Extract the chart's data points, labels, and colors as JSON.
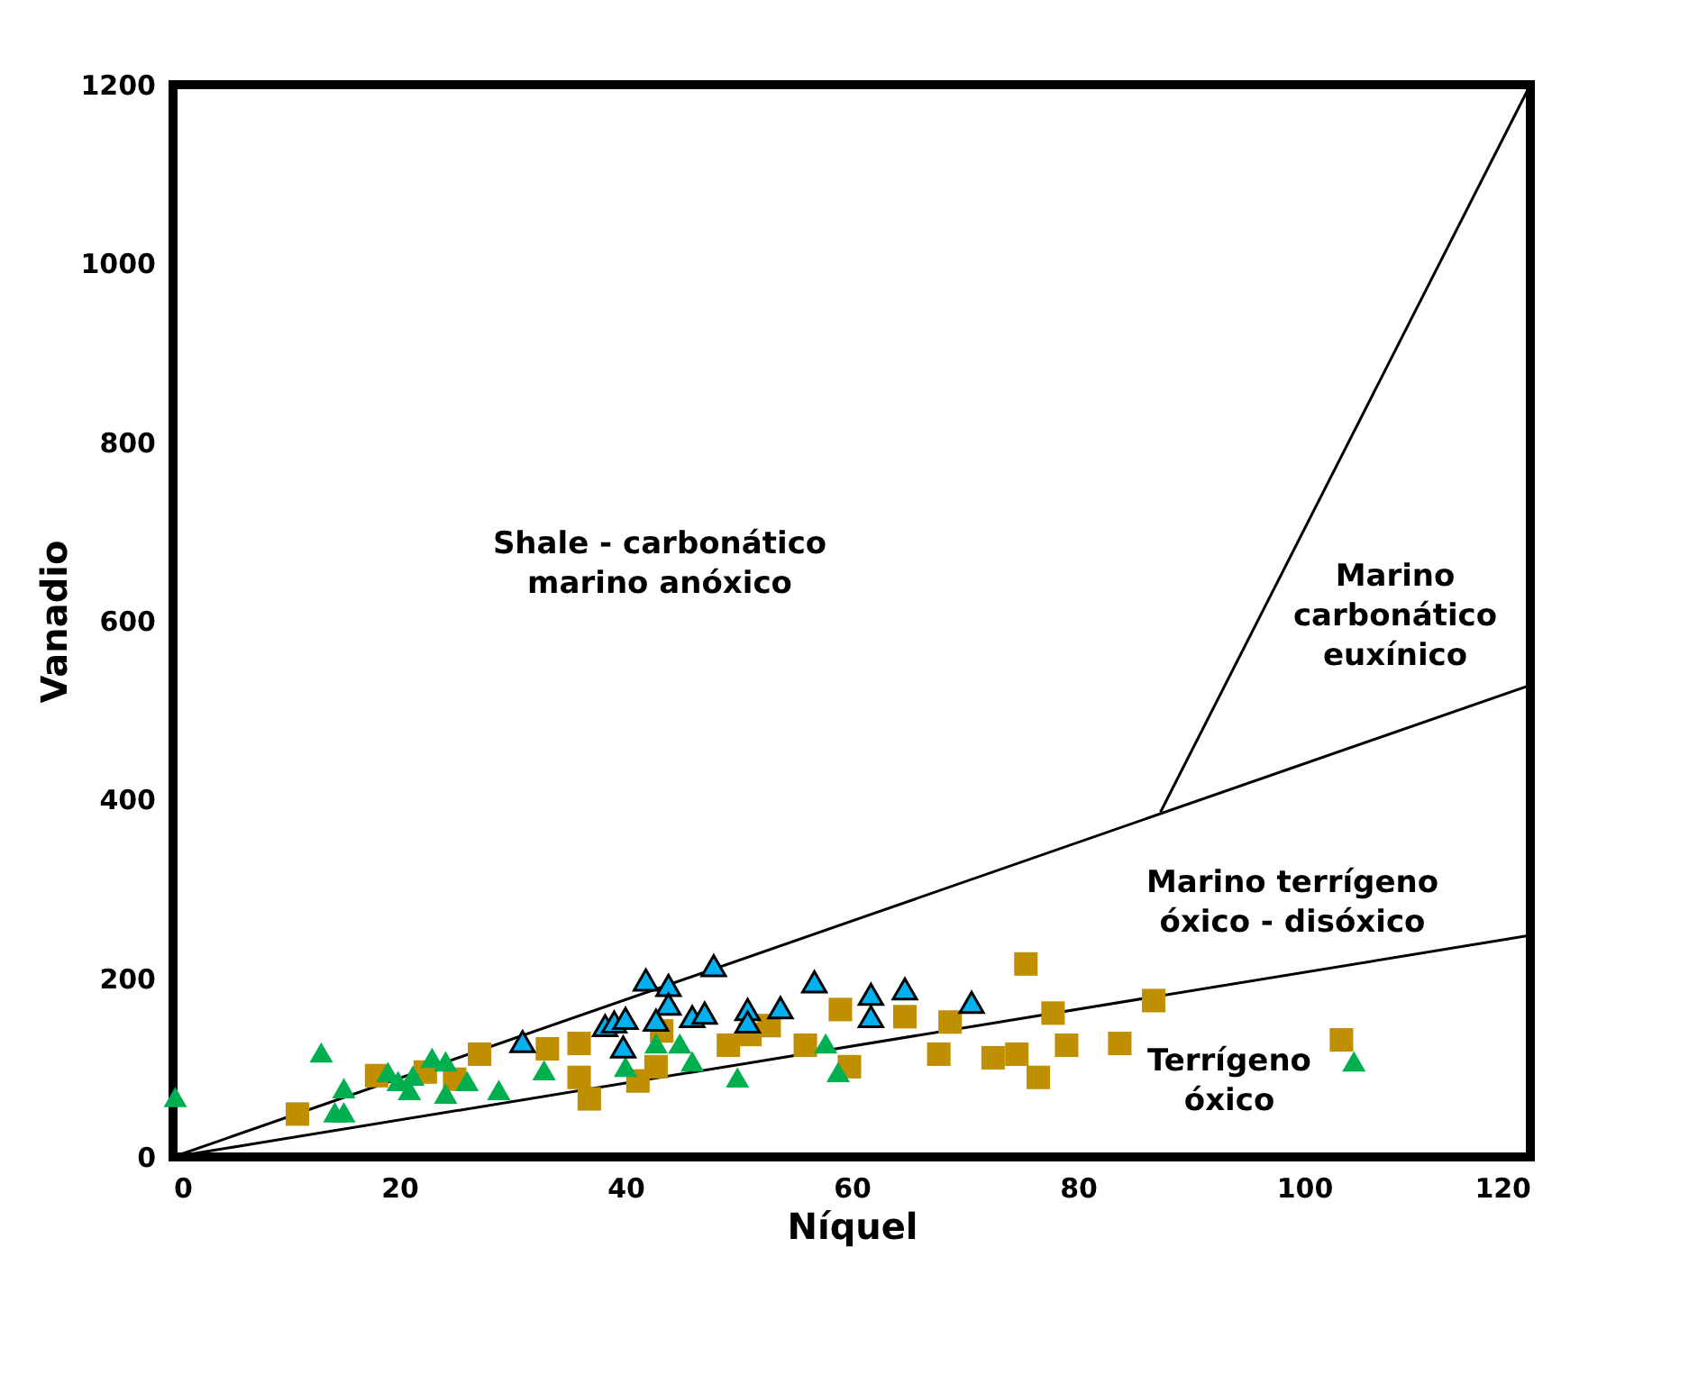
{
  "chart_data": {
    "type": "scatter",
    "xlabel": "Níquel",
    "ylabel": "Vanadio",
    "xlim": [
      0,
      120
    ],
    "ylim": [
      0,
      1200
    ],
    "xticks": [
      0,
      20,
      40,
      60,
      80,
      100,
      120
    ],
    "yticks": [
      0,
      200,
      400,
      600,
      800,
      1000,
      1200
    ],
    "grid": false,
    "series": [
      {
        "type": "line",
        "color": "#000000",
        "marker": "none",
        "line_style": "solid",
        "x": [
          0,
          120
        ],
        "values": [
          0,
          528
        ]
      },
      {
        "type": "line",
        "color": "#000000",
        "marker": "none",
        "line_style": "solid",
        "x": [
          0,
          120
        ],
        "values": [
          0,
          248
        ]
      },
      {
        "type": "line",
        "color": "#000000",
        "marker": "none",
        "line_style": "solid",
        "x": [
          87.3,
          120
        ],
        "values": [
          386,
          1200
        ]
      },
      {
        "color": "#bf8f00",
        "marker": "square",
        "x": [
          11.0,
          18.0,
          22.3,
          24.9,
          27.1,
          33.1,
          35.9,
          35.9,
          36.8,
          41.1,
          43.2,
          42.7,
          49.1,
          51.0,
          52.7,
          55.9,
          59.0,
          59.8,
          64.7,
          67.7,
          68.7,
          72.5,
          74.6,
          75.4,
          76.5,
          77.8,
          79.0,
          86.7,
          83.7,
          103.3
        ],
        "values": [
          48,
          91,
          95,
          87,
          115,
          121,
          127,
          89,
          65,
          85,
          141,
          101,
          125,
          137,
          147,
          125,
          165,
          101,
          157,
          115,
          151,
          111,
          115,
          216,
          89,
          161,
          125,
          175,
          127,
          131
        ]
      },
      {
        "color": "#00b050",
        "marker": "triangle",
        "x": [
          0.2,
          13.1,
          15.1,
          14.3,
          15.1,
          19.0,
          19.9,
          20.9,
          21.2,
          22.9,
          24.1,
          24.1,
          26.0,
          28.8,
          32.8,
          42.7,
          44.8,
          45.9,
          40.0,
          49.9,
          57.7,
          58.8,
          104.4
        ],
        "values": [
          67,
          117,
          77,
          50,
          50,
          95,
          85,
          75,
          91,
          111,
          107,
          71,
          85,
          75,
          97,
          127,
          127,
          107,
          101,
          89,
          127,
          95,
          107
        ]
      },
      {
        "color": "#00b0f0",
        "marker": "triangle",
        "x": [
          30.9,
          38.2,
          39.0,
          40.0,
          39.8,
          41.8,
          43.8,
          43.8,
          42.7,
          45.9,
          47.0,
          47.8,
          50.8,
          50.8,
          53.7,
          56.7,
          61.7,
          61.7,
          64.7,
          70.6
        ],
        "values": [
          129,
          147,
          151,
          155,
          123,
          198,
          192,
          171,
          153,
          157,
          161,
          214,
          165,
          151,
          167,
          196,
          182,
          157,
          188,
          173
        ]
      }
    ],
    "annotations": [
      "Shale - carbonático\nmarino anóxico",
      "Marino\ncarbonático\neuxínico",
      "Marino terrígeno\nóxico - disóxico",
      "Terrígeno\nóxico"
    ]
  }
}
